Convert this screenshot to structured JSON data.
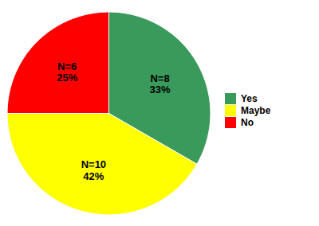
{
  "chart_data": {
    "type": "pie",
    "categories": [
      "Yes",
      "Maybe",
      "No"
    ],
    "values": [
      8,
      10,
      6
    ],
    "colors": [
      "#3a9a5c",
      "#ffff00",
      "#ff0000"
    ],
    "data_labels": true,
    "value_labels": [
      "N=8\n33%",
      "N=10\n42%",
      "N=6\n25%"
    ],
    "legend": "right"
  }
}
